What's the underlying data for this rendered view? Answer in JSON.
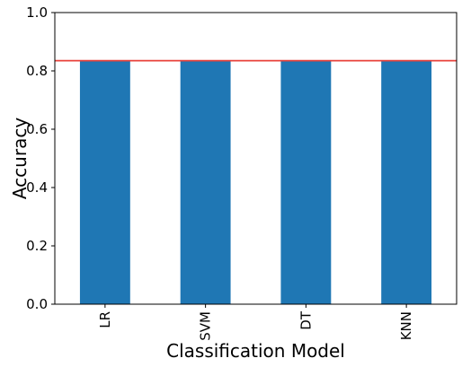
{
  "chart_data": {
    "type": "bar",
    "categories": [
      "LR",
      "SVM",
      "DT",
      "KNN"
    ],
    "values": [
      0.835,
      0.835,
      0.835,
      0.835
    ],
    "xlabel": "Classification Model",
    "ylabel": "Accuracy",
    "ylim": [
      0,
      1.0
    ],
    "yticks": [
      "0.0",
      "0.2",
      "0.4",
      "0.6",
      "0.8",
      "1.0"
    ],
    "reference_line": {
      "value": 0.835,
      "color": "#e8413a"
    },
    "bar_color": "#1f77b4",
    "grid": false,
    "legend": "none"
  }
}
